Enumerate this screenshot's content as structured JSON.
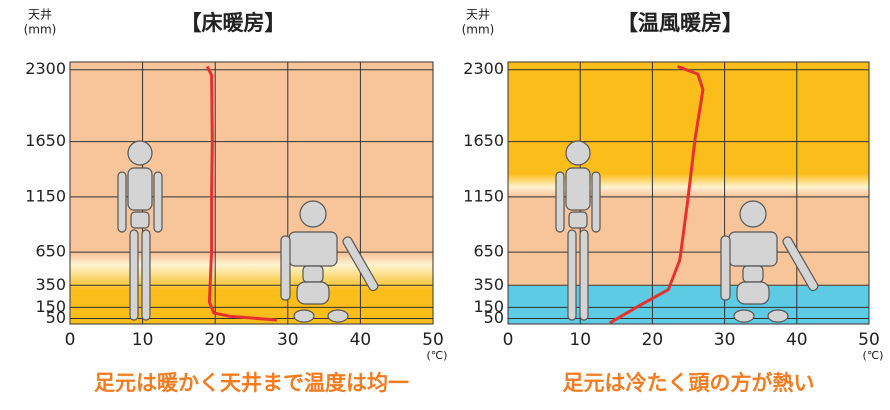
{
  "chart_data": [
    {
      "type": "line",
      "title": "【床暖房】",
      "y_label": "天井",
      "y_unit": "(mm)",
      "x_label": "(℃)",
      "caption": "足元は暖かく天井まで温度は均一",
      "xlim": [
        0,
        50
      ],
      "xticks": [
        0,
        10,
        20,
        30,
        40,
        50
      ],
      "ylim": [
        0,
        2370
      ],
      "yticks": [
        50,
        150,
        350,
        650,
        1150,
        1650,
        2300
      ],
      "grid": true,
      "series": [
        {
          "color": "#e8312f",
          "x": [
            18.9,
            19.5,
            19.6,
            19.5,
            19.5,
            19.3,
            19.2,
            19.8,
            22,
            28.5
          ],
          "values": [
            2330,
            2250,
            1650,
            1150,
            650,
            350,
            200,
            100,
            70,
            36
          ]
        }
      ]
    },
    {
      "type": "line",
      "title": "【温風暖房】",
      "y_label": "天井",
      "y_unit": "(mm)",
      "x_label": "(℃)",
      "caption": "足元は冷たく頭の方が熱い",
      "xlim": [
        0,
        50
      ],
      "xticks": [
        0,
        10,
        20,
        30,
        40,
        50
      ],
      "ylim": [
        0,
        2370
      ],
      "yticks": [
        50,
        150,
        350,
        650,
        1150,
        1650,
        2300
      ],
      "grid": true,
      "series": [
        {
          "color": "#e8312f",
          "x": [
            23.5,
            26.3,
            27,
            25.9,
            24.9,
            23.8,
            22.2,
            18.3,
            14.1
          ],
          "values": [
            2330,
            2260,
            2120,
            1670,
            1120,
            580,
            310,
            170,
            10
          ]
        }
      ]
    }
  ]
}
